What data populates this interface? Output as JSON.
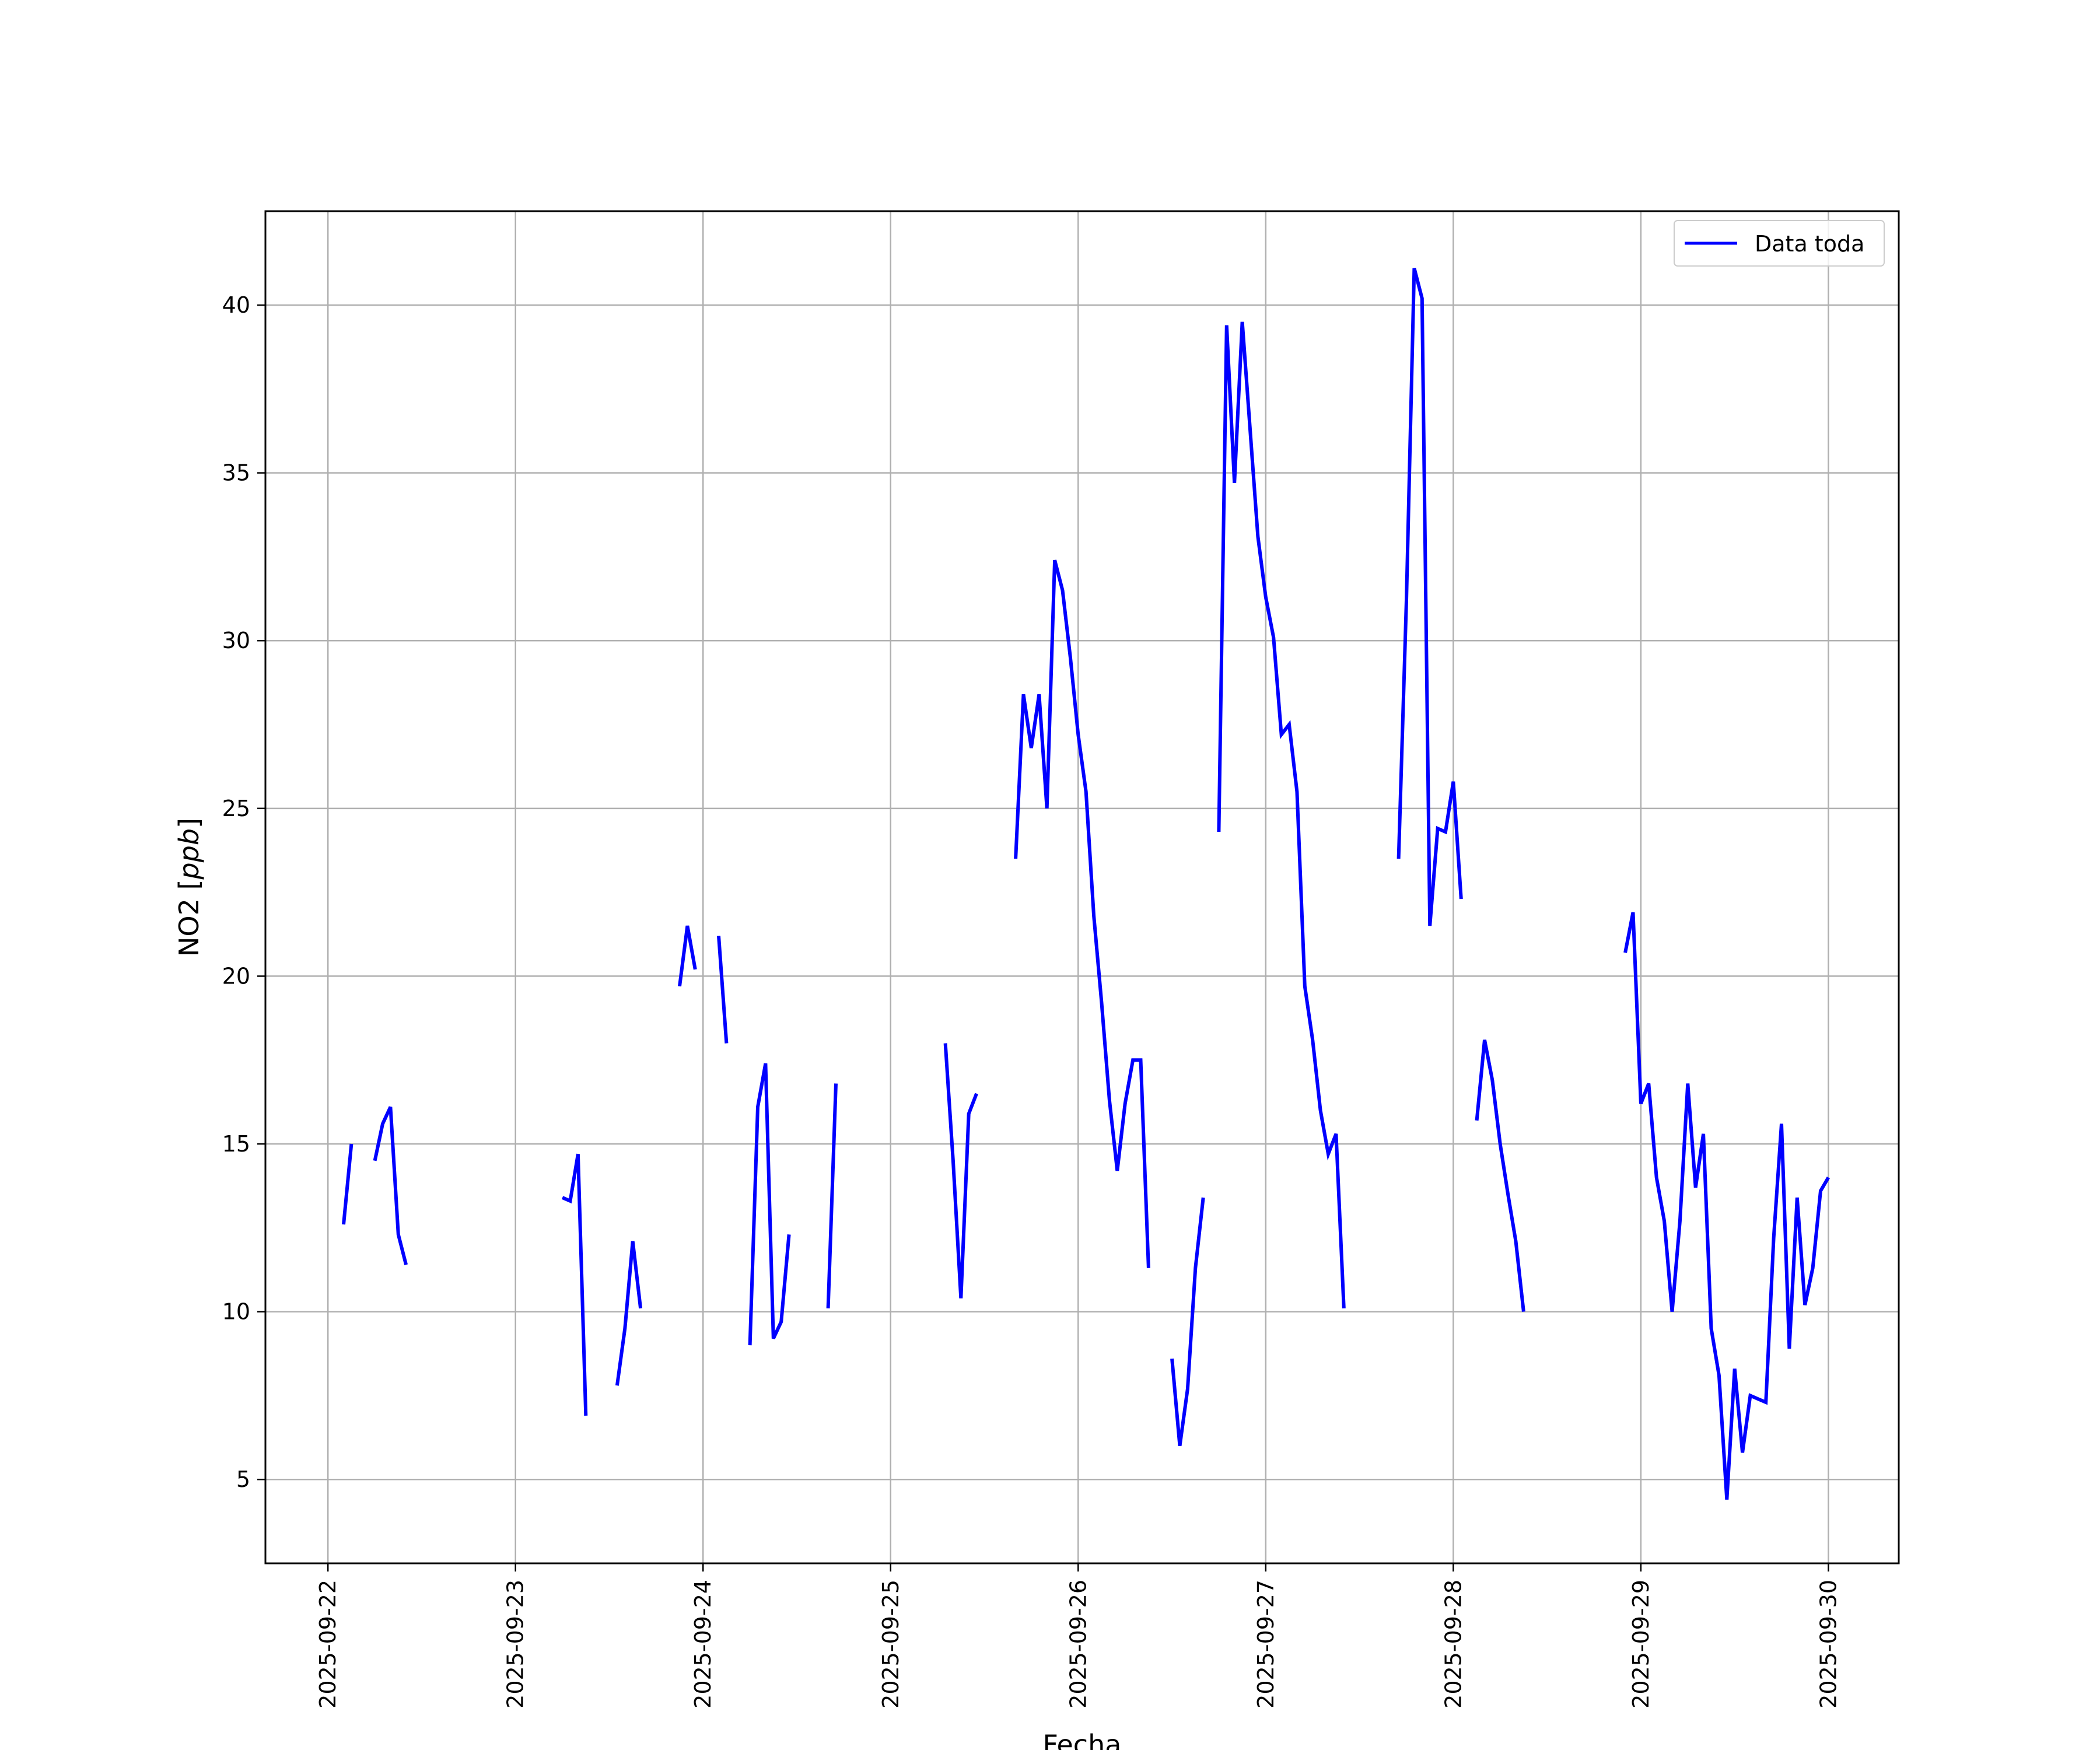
{
  "chart_data": {
    "type": "line",
    "title": "",
    "xlabel": "Fecha",
    "ylabel_prefix": "NO2 [",
    "ylabel_unit": "ppb",
    "ylabel_suffix": "]",
    "x_ticks": [
      "2025-09-22",
      "2025-09-23",
      "2025-09-24",
      "2025-09-25",
      "2025-09-26",
      "2025-09-27",
      "2025-09-28",
      "2025-09-29",
      "2025-09-30"
    ],
    "y_ticks": [
      5,
      10,
      15,
      20,
      25,
      30,
      35,
      40
    ],
    "xlim": [
      "2025-09-21T16:00",
      "2025-09-30T09:00"
    ],
    "ylim": [
      2.5,
      42.8
    ],
    "grid": true,
    "legend_position": "top-right",
    "line_color": "#0000ff",
    "series": [
      {
        "name": "Data toda",
        "segments": [
          [
            [
              "2025-09-22T02:00",
              12.6
            ],
            [
              "2025-09-22T03:00",
              15.0
            ]
          ],
          [
            [
              "2025-09-22T06:00",
              14.5
            ],
            [
              "2025-09-22T07:00",
              15.6
            ],
            [
              "2025-09-22T08:00",
              16.1
            ],
            [
              "2025-09-22T09:00",
              12.3
            ],
            [
              "2025-09-22T10:00",
              11.4
            ]
          ],
          [
            [
              "2025-09-23T06:00",
              13.4
            ],
            [
              "2025-09-23T07:00",
              13.3
            ],
            [
              "2025-09-23T08:00",
              14.7
            ],
            [
              "2025-09-23T09:00",
              6.9
            ]
          ],
          [
            [
              "2025-09-23T13:00",
              7.8
            ],
            [
              "2025-09-23T14:00",
              9.5
            ],
            [
              "2025-09-23T15:00",
              12.1
            ],
            [
              "2025-09-23T16:00",
              10.1
            ]
          ],
          [
            [
              "2025-09-23T21:00",
              19.7
            ],
            [
              "2025-09-23T22:00",
              21.5
            ],
            [
              "2025-09-23T23:00",
              20.2
            ]
          ],
          [
            [
              "2025-09-24T02:00",
              21.2
            ],
            [
              "2025-09-24T03:00",
              18.0
            ]
          ],
          [
            [
              "2025-09-24T06:00",
              9.0
            ],
            [
              "2025-09-24T07:00",
              16.1
            ],
            [
              "2025-09-24T08:00",
              17.4
            ],
            [
              "2025-09-24T09:00",
              9.2
            ],
            [
              "2025-09-24T10:00",
              9.7
            ],
            [
              "2025-09-24T11:00",
              12.3
            ]
          ],
          [
            [
              "2025-09-24T16:00",
              10.1
            ],
            [
              "2025-09-24T17:00",
              16.8
            ]
          ],
          [
            [
              "2025-09-25T07:00",
              18.0
            ],
            [
              "2025-09-25T08:00",
              14.5
            ],
            [
              "2025-09-25T09:00",
              10.4
            ],
            [
              "2025-09-25T10:00",
              15.9
            ],
            [
              "2025-09-25T11:00",
              16.5
            ]
          ],
          [
            [
              "2025-09-25T16:00",
              23.5
            ],
            [
              "2025-09-25T17:00",
              28.4
            ],
            [
              "2025-09-25T18:00",
              26.8
            ],
            [
              "2025-09-25T19:00",
              28.4
            ],
            [
              "2025-09-25T20:00",
              25.0
            ],
            [
              "2025-09-25T21:00",
              32.4
            ],
            [
              "2025-09-25T22:00",
              31.5
            ],
            [
              "2025-09-25T23:00",
              29.5
            ],
            [
              "2025-09-26T00:00",
              27.2
            ],
            [
              "2025-09-26T01:00",
              25.5
            ],
            [
              "2025-09-26T02:00",
              21.8
            ],
            [
              "2025-09-26T03:00",
              19.2
            ],
            [
              "2025-09-26T04:00",
              16.3
            ],
            [
              "2025-09-26T05:00",
              14.2
            ],
            [
              "2025-09-26T06:00",
              16.2
            ],
            [
              "2025-09-26T07:00",
              17.5
            ],
            [
              "2025-09-26T08:00",
              17.5
            ],
            [
              "2025-09-26T09:00",
              11.3
            ]
          ],
          [
            [
              "2025-09-26T12:00",
              8.6
            ],
            [
              "2025-09-26T13:00",
              6.0
            ],
            [
              "2025-09-26T14:00",
              7.7
            ],
            [
              "2025-09-26T15:00",
              11.3
            ],
            [
              "2025-09-26T16:00",
              13.4
            ]
          ],
          [
            [
              "2025-09-26T18:00",
              24.3
            ],
            [
              "2025-09-26T19:00",
              39.4
            ],
            [
              "2025-09-26T20:00",
              34.7
            ],
            [
              "2025-09-26T21:00",
              39.5
            ],
            [
              "2025-09-26T22:00",
              36.3
            ],
            [
              "2025-09-26T23:00",
              33.1
            ],
            [
              "2025-09-27T00:00",
              31.3
            ],
            [
              "2025-09-27T01:00",
              30.1
            ],
            [
              "2025-09-27T02:00",
              27.2
            ],
            [
              "2025-09-27T03:00",
              27.5
            ],
            [
              "2025-09-27T04:00",
              25.5
            ],
            [
              "2025-09-27T05:00",
              19.7
            ],
            [
              "2025-09-27T06:00",
              18.1
            ],
            [
              "2025-09-27T07:00",
              16.0
            ],
            [
              "2025-09-27T08:00",
              14.7
            ],
            [
              "2025-09-27T09:00",
              15.3
            ],
            [
              "2025-09-27T10:00",
              10.1
            ]
          ],
          [
            [
              "2025-09-27T17:00",
              23.5
            ],
            [
              "2025-09-27T18:00",
              31.2
            ],
            [
              "2025-09-27T19:00",
              41.1
            ],
            [
              "2025-09-27T20:00",
              40.2
            ],
            [
              "2025-09-27T21:00",
              21.5
            ],
            [
              "2025-09-27T22:00",
              24.4
            ],
            [
              "2025-09-27T23:00",
              24.3
            ],
            [
              "2025-09-28T00:00",
              25.8
            ],
            [
              "2025-09-28T01:00",
              22.3
            ]
          ],
          [
            [
              "2025-09-28T03:00",
              15.7
            ],
            [
              "2025-09-28T04:00",
              18.1
            ],
            [
              "2025-09-28T05:00",
              16.9
            ],
            [
              "2025-09-28T06:00",
              15.0
            ],
            [
              "2025-09-28T07:00",
              13.5
            ],
            [
              "2025-09-28T08:00",
              12.1
            ],
            [
              "2025-09-28T09:00",
              10.0
            ]
          ],
          [
            [
              "2025-09-28T22:00",
              20.7
            ],
            [
              "2025-09-28T23:00",
              21.9
            ],
            [
              "2025-09-29T00:00",
              16.2
            ],
            [
              "2025-09-29T01:00",
              16.8
            ],
            [
              "2025-09-29T02:00",
              14.0
            ],
            [
              "2025-09-29T03:00",
              12.7
            ],
            [
              "2025-09-29T04:00",
              10.0
            ],
            [
              "2025-09-29T05:00",
              12.7
            ],
            [
              "2025-09-29T06:00",
              16.8
            ],
            [
              "2025-09-29T07:00",
              13.7
            ],
            [
              "2025-09-29T08:00",
              15.3
            ],
            [
              "2025-09-29T09:00",
              9.5
            ],
            [
              "2025-09-29T10:00",
              8.1
            ],
            [
              "2025-09-29T11:00",
              4.4
            ],
            [
              "2025-09-29T12:00",
              8.3
            ],
            [
              "2025-09-29T13:00",
              5.8
            ],
            [
              "2025-09-29T14:00",
              7.5
            ],
            [
              "2025-09-29T15:00",
              7.4
            ],
            [
              "2025-09-29T16:00",
              7.3
            ],
            [
              "2025-09-29T17:00",
              12.2
            ],
            [
              "2025-09-29T18:00",
              15.6
            ],
            [
              "2025-09-29T19:00",
              8.9
            ],
            [
              "2025-09-29T20:00",
              13.4
            ],
            [
              "2025-09-29T21:00",
              10.2
            ],
            [
              "2025-09-29T22:00",
              11.3
            ],
            [
              "2025-09-29T23:00",
              13.6
            ],
            [
              "2025-09-30T00:00",
              14.0
            ]
          ]
        ]
      }
    ]
  }
}
